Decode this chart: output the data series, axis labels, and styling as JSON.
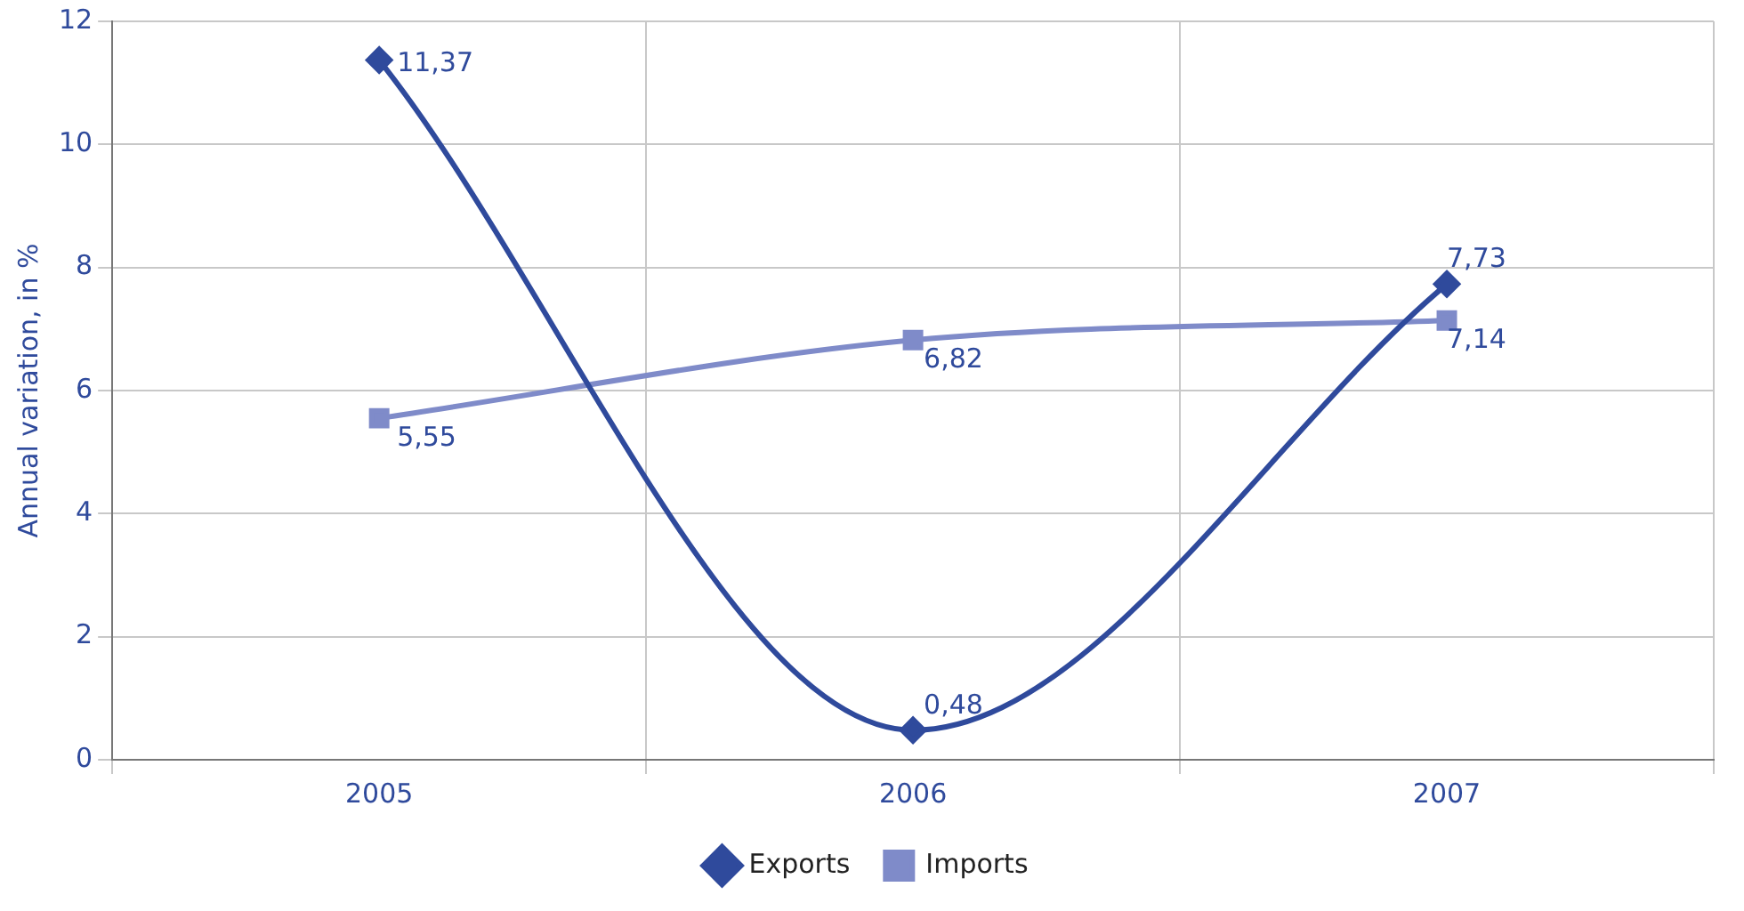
{
  "chart_data": {
    "type": "line",
    "ylabel": "Annual variation, in %",
    "categories": [
      "2005",
      "2006",
      "2007"
    ],
    "series": [
      {
        "name": "Exports",
        "color": "#2f4a9c",
        "values": [
          11.37,
          0.48,
          7.73
        ],
        "value_labels": [
          "11,37",
          "0,48",
          "7,73"
        ],
        "marker": "diamond"
      },
      {
        "name": "Imports",
        "color": "#7f8bc9",
        "values": [
          5.55,
          6.82,
          7.14
        ],
        "value_labels": [
          "5,55",
          "6,82",
          "7,14"
        ],
        "marker": "square"
      }
    ],
    "ylim": [
      0,
      12
    ],
    "yticks": [
      0,
      2,
      4,
      6,
      8,
      10,
      12
    ],
    "grid": true,
    "legend": "bottom"
  }
}
